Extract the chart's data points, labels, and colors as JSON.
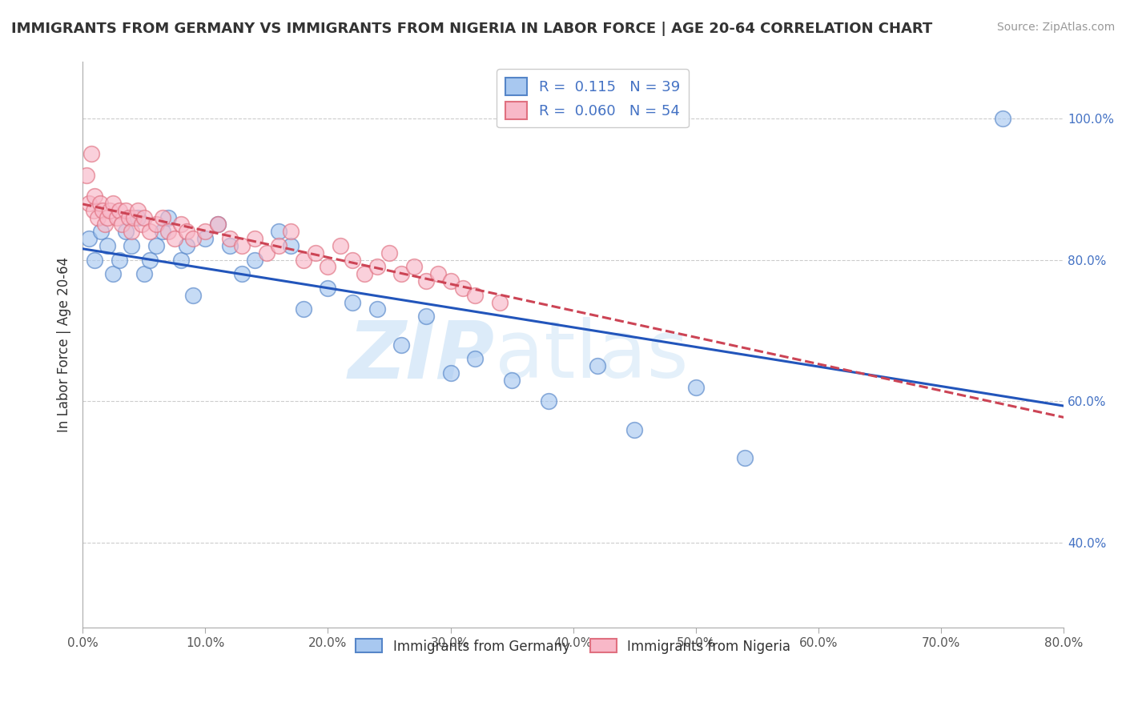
{
  "title": "IMMIGRANTS FROM GERMANY VS IMMIGRANTS FROM NIGERIA IN LABOR FORCE | AGE 20-64 CORRELATION CHART",
  "source": "Source: ZipAtlas.com",
  "ylabel": "In Labor Force | Age 20-64",
  "legend_label1": "Immigrants from Germany",
  "legend_label2": "Immigrants from Nigeria",
  "R1": 0.115,
  "N1": 39,
  "R2": 0.06,
  "N2": 54,
  "xlim": [
    0.0,
    0.8
  ],
  "ylim": [
    0.28,
    1.08
  ],
  "xticks": [
    0.0,
    0.1,
    0.2,
    0.3,
    0.4,
    0.5,
    0.6,
    0.7,
    0.8
  ],
  "yticks_right": [
    0.4,
    0.6,
    0.8,
    1.0
  ],
  "color_germany": "#a8c8f0",
  "color_nigeria": "#f8b8c8",
  "edge_germany": "#5585c8",
  "edge_nigeria": "#e07080",
  "trendline_germany": "#2255bb",
  "trendline_nigeria": "#cc4455",
  "background_color": "#ffffff",
  "watermark_zip": "ZIP",
  "watermark_atlas": "atlas",
  "germany_x": [
    0.005,
    0.01,
    0.015,
    0.02,
    0.025,
    0.03,
    0.035,
    0.04,
    0.045,
    0.05,
    0.055,
    0.06,
    0.065,
    0.07,
    0.08,
    0.085,
    0.09,
    0.1,
    0.11,
    0.12,
    0.13,
    0.14,
    0.16,
    0.17,
    0.18,
    0.2,
    0.22,
    0.24,
    0.26,
    0.28,
    0.3,
    0.32,
    0.35,
    0.38,
    0.42,
    0.45,
    0.5,
    0.54,
    0.75
  ],
  "germany_y": [
    0.83,
    0.8,
    0.84,
    0.82,
    0.78,
    0.8,
    0.84,
    0.82,
    0.86,
    0.78,
    0.8,
    0.82,
    0.84,
    0.86,
    0.8,
    0.82,
    0.75,
    0.83,
    0.85,
    0.82,
    0.78,
    0.8,
    0.84,
    0.82,
    0.73,
    0.76,
    0.74,
    0.73,
    0.68,
    0.72,
    0.64,
    0.66,
    0.63,
    0.6,
    0.65,
    0.56,
    0.62,
    0.52,
    1.0
  ],
  "nigeria_x": [
    0.003,
    0.005,
    0.007,
    0.009,
    0.01,
    0.012,
    0.014,
    0.016,
    0.018,
    0.02,
    0.022,
    0.025,
    0.028,
    0.03,
    0.032,
    0.035,
    0.038,
    0.04,
    0.042,
    0.045,
    0.048,
    0.05,
    0.055,
    0.06,
    0.065,
    0.07,
    0.075,
    0.08,
    0.085,
    0.09,
    0.1,
    0.11,
    0.12,
    0.13,
    0.14,
    0.15,
    0.16,
    0.17,
    0.18,
    0.19,
    0.2,
    0.21,
    0.22,
    0.23,
    0.24,
    0.25,
    0.26,
    0.27,
    0.28,
    0.29,
    0.3,
    0.31,
    0.32,
    0.34
  ],
  "nigeria_y": [
    0.92,
    0.88,
    0.95,
    0.87,
    0.89,
    0.86,
    0.88,
    0.87,
    0.85,
    0.86,
    0.87,
    0.88,
    0.86,
    0.87,
    0.85,
    0.87,
    0.86,
    0.84,
    0.86,
    0.87,
    0.85,
    0.86,
    0.84,
    0.85,
    0.86,
    0.84,
    0.83,
    0.85,
    0.84,
    0.83,
    0.84,
    0.85,
    0.83,
    0.82,
    0.83,
    0.81,
    0.82,
    0.84,
    0.8,
    0.81,
    0.79,
    0.82,
    0.8,
    0.78,
    0.79,
    0.81,
    0.78,
    0.79,
    0.77,
    0.78,
    0.77,
    0.76,
    0.75,
    0.74
  ]
}
